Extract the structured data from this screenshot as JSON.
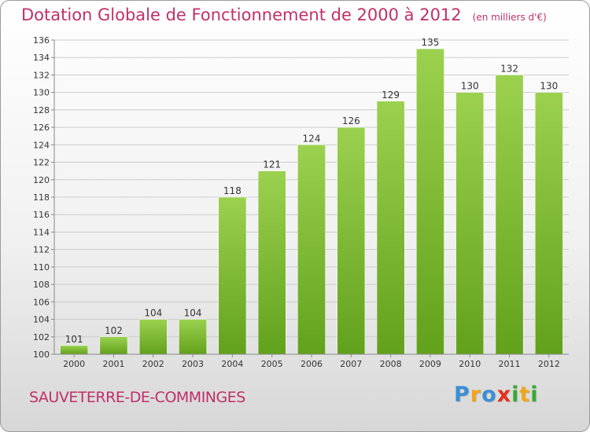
{
  "title": "Dotation Globale de Fonctionnement de 2000 à 2012",
  "unit": "(en milliers d'€)",
  "place": "SAUVETERRE-DE-COMMINGES",
  "logo": {
    "letters": [
      "P",
      "r",
      "o",
      "x",
      "i",
      "t",
      "i"
    ],
    "colors": [
      "#3a8fd4",
      "#f2a51a",
      "#3a8fd4",
      "#e2311d",
      "#39a935",
      "#f2a51a",
      "#39a935"
    ]
  },
  "colors": {
    "title": "#c0306a",
    "bar_top": "#9bd14f",
    "bar_bottom": "#62a11c",
    "grid": "#cccccc"
  },
  "chart_data": {
    "type": "bar",
    "categories": [
      "2000",
      "2001",
      "2002",
      "2003",
      "2004",
      "2005",
      "2006",
      "2007",
      "2008",
      "2009",
      "2010",
      "2011",
      "2012"
    ],
    "values": [
      101,
      102,
      104,
      104,
      118,
      121,
      124,
      126,
      129,
      135,
      130,
      132,
      130
    ],
    "data_labels": [
      "101",
      "102",
      "104",
      "104",
      "118",
      "121",
      "124",
      "126",
      "129",
      "135",
      "130",
      "132",
      "130"
    ],
    "ylim": [
      100,
      136
    ],
    "yticks": [
      100,
      102,
      104,
      106,
      108,
      110,
      112,
      114,
      116,
      118,
      120,
      122,
      124,
      126,
      128,
      130,
      132,
      134,
      136
    ],
    "grid": true
  }
}
